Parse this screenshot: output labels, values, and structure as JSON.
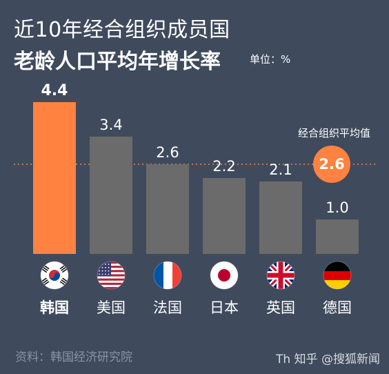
{
  "header": {
    "title_line1": "近10年经合组织成员国",
    "title_line2": "老龄人口平均年增长率",
    "unit": "单位：%"
  },
  "footer": {
    "source": "资料：韩国经济研究院",
    "watermark": "Th 知乎 @搜狐新闻"
  },
  "colors": {
    "highlight": "#ff8240",
    "bar": "#6b6b6b",
    "background": "#3f4a5c",
    "avg_line": "#ff8240"
  },
  "chart_data": {
    "type": "bar",
    "categories": [
      "韩国",
      "美国",
      "法国",
      "日本",
      "英国",
      "德国"
    ],
    "values": [
      4.4,
      3.4,
      2.6,
      2.2,
      2.1,
      1.0
    ],
    "value_labels": [
      "4.4",
      "3.4",
      "2.6",
      "2.2",
      "2.1",
      "1.0"
    ],
    "highlight_index": 0,
    "flags": [
      "kr-flag-icon",
      "us-flag-icon",
      "fr-flag-icon",
      "jp-flag-icon",
      "uk-flag-icon",
      "de-flag-icon"
    ],
    "reference_line": {
      "label": "经合组织平均值",
      "value": 2.6,
      "value_label": "2.6"
    },
    "grid": false,
    "legend": "none"
  }
}
